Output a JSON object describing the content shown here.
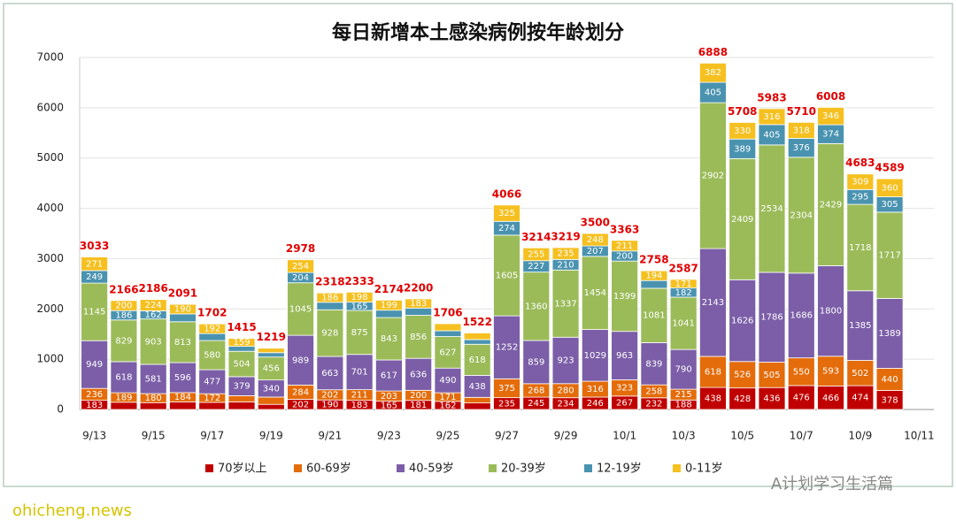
{
  "chart_data": {
    "type": "stacked-bar",
    "title": "每日新增本土感染病例按年龄划分",
    "categories": [
      "9/13",
      null,
      "9/15",
      null,
      "9/17",
      null,
      "9/19",
      null,
      "9/21",
      null,
      "9/23",
      null,
      "9/25",
      null,
      "9/27",
      null,
      "9/29",
      null,
      "10/1",
      null,
      "10/3",
      null,
      "10/5",
      null,
      "10/7",
      null,
      "10/9",
      null,
      "10/11"
    ],
    "series": [
      {
        "name": "70岁以上",
        "color": "#c00000",
        "values": [
          183,
          144,
          136,
          152,
          142,
          152,
          102,
          202,
          190,
          183,
          165,
          181,
          162,
          130,
          235,
          245,
          234,
          246,
          267,
          232,
          188,
          438,
          428,
          436,
          476,
          466,
          474,
          378,
          null
        ]
      },
      {
        "name": "60-69岁",
        "color": "#e46c0a",
        "values": [
          236,
          189,
          180,
          184,
          172,
          122,
          145,
          284,
          202,
          211,
          203,
          200,
          171,
          111,
          375,
          268,
          280,
          316,
          323,
          258,
          215,
          618,
          526,
          505,
          550,
          593,
          502,
          440,
          null
        ]
      },
      {
        "name": "40-59岁",
        "color": "#7b5ea7",
        "values": [
          949,
          618,
          581,
          596,
          477,
          379,
          340,
          989,
          663,
          701,
          617,
          636,
          490,
          438,
          1252,
          859,
          923,
          1029,
          963,
          839,
          790,
          2143,
          1626,
          1786,
          1686,
          1800,
          1385,
          1389,
          null
        ]
      },
      {
        "name": "20-39岁",
        "color": "#9bbb59",
        "values": [
          1145,
          829,
          903,
          813,
          580,
          504,
          456,
          1045,
          928,
          875,
          843,
          856,
          627,
          618,
          1605,
          1360,
          1337,
          1454,
          1399,
          1081,
          1041,
          2902,
          2409,
          2534,
          2304,
          2429,
          1718,
          1717,
          null
        ]
      },
      {
        "name": "12-19岁",
        "color": "#4a93b0",
        "values": [
          249,
          186,
          162,
          156,
          139,
          99,
          87,
          204,
          149,
          165,
          147,
          144,
          115,
          93,
          274,
          227,
          210,
          207,
          200,
          154,
          182,
          405,
          389,
          405,
          376,
          374,
          295,
          305,
          null
        ]
      },
      {
        "name": "0-11岁",
        "color": "#f5c020",
        "values": [
          271,
          200,
          224,
          190,
          192,
          159,
          89,
          254,
          186,
          198,
          199,
          183,
          141,
          132,
          325,
          255,
          235,
          248,
          211,
          194,
          171,
          382,
          330,
          316,
          318,
          346,
          309,
          360,
          null
        ]
      }
    ],
    "totals": [
      3033,
      2166,
      2186,
      2091,
      1702,
      1415,
      1219,
      2978,
      2318,
      2333,
      2174,
      2200,
      1706,
      1522,
      4066,
      3214,
      3219,
      3500,
      3363,
      2758,
      2587,
      6888,
      5708,
      5983,
      5710,
      6008,
      4683,
      4589,
      null
    ],
    "ylim": [
      0,
      7000
    ],
    "yticks": [
      0,
      1000,
      2000,
      3000,
      4000,
      5000,
      6000,
      7000
    ],
    "grid": true,
    "legend": "bottom",
    "watermarks": [
      "A计划学习生活篇",
      "ohicheng.news"
    ]
  }
}
